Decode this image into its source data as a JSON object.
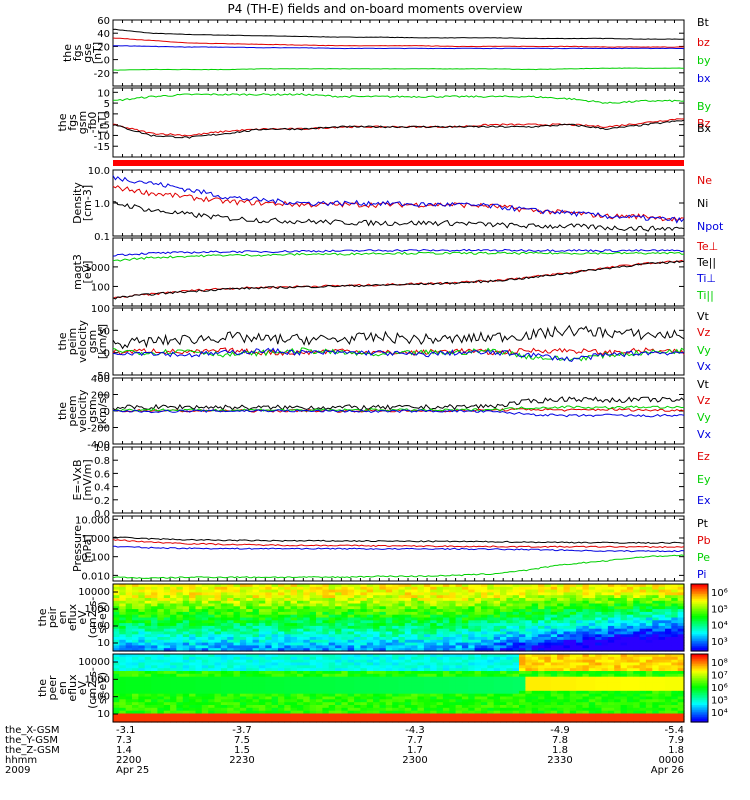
{
  "title": "P4 (TH-E) fields and on-board moments overview",
  "chart_data": [
    {
      "type": "line",
      "panel": "fgs_gse",
      "ylabel": [
        "the",
        "fgs",
        "gse",
        "[nT]"
      ],
      "ylim": [
        -40,
        60
      ],
      "yticks": [
        60,
        40,
        20,
        0,
        -20
      ],
      "series": [
        {
          "name": "Bt",
          "color": "#000000",
          "values": [
            46,
            40,
            38,
            37,
            36,
            35,
            34,
            34,
            33,
            33,
            33,
            32,
            32,
            32,
            31,
            31
          ]
        },
        {
          "name": "bz",
          "color": "#e00000",
          "values": [
            33,
            29,
            25,
            24,
            23,
            22,
            21,
            21,
            21,
            20,
            20,
            20,
            20,
            19,
            19,
            19
          ]
        },
        {
          "name": "by",
          "color": "#00d000",
          "values": [
            -16,
            -15,
            -15,
            -15,
            -14,
            -14,
            -14,
            -14,
            -14,
            -14,
            -14,
            -15,
            -14,
            -13,
            -13,
            -13
          ]
        },
        {
          "name": "bx",
          "color": "#0000e0",
          "values": [
            21,
            20,
            19,
            19,
            18,
            18,
            17,
            17,
            17,
            17,
            17,
            17,
            17,
            17,
            17,
            17
          ]
        }
      ]
    },
    {
      "type": "line",
      "panel": "fgs_gsm_fb0",
      "ylabel": [
        "the",
        "fgs",
        "gsm",
        "-fb0",
        "[nT]"
      ],
      "ylim": [
        -20,
        12
      ],
      "yticks": [
        10,
        5,
        0,
        -5,
        -10,
        -15
      ],
      "series": [
        {
          "name": "By",
          "color": "#00d000",
          "values": [
            6,
            8,
            9,
            9,
            9,
            9,
            8,
            8,
            8,
            8,
            8,
            8,
            7,
            5,
            6,
            6
          ]
        },
        {
          "name": "Bz",
          "color": "#e00000",
          "values": [
            -5,
            -9,
            -10,
            -8,
            -7,
            -7,
            -6,
            -6,
            -6,
            -6,
            -5,
            -5,
            -5,
            -6,
            -4,
            -2
          ]
        },
        {
          "name": "Bx",
          "color": "#000000",
          "values": [
            -5,
            -10,
            -11,
            -9,
            -7,
            -7,
            -6,
            -6,
            -6,
            -6,
            -6,
            -6,
            -5,
            -7,
            -5,
            -3
          ]
        }
      ]
    },
    {
      "type": "line",
      "panel": "density",
      "scale": "log",
      "ylabel": [
        "Density",
        "[cm-3]"
      ],
      "ylim": [
        0.1,
        10
      ],
      "yticks": [
        "10.0",
        "1.0",
        "0.1"
      ],
      "series": [
        {
          "name": "Ne",
          "color": "#e00000",
          "values": [
            3,
            2,
            1.5,
            1.1,
            1.0,
            0.9,
            0.9,
            0.9,
            0.9,
            0.9,
            0.8,
            0.6,
            0.5,
            0.4,
            0.4,
            0.3
          ]
        },
        {
          "name": "Ni",
          "color": "#000000",
          "values": [
            1,
            0.6,
            0.45,
            0.35,
            0.3,
            0.28,
            0.26,
            0.25,
            0.25,
            0.25,
            0.22,
            0.2,
            0.2,
            0.18,
            0.17,
            0.17
          ]
        },
        {
          "name": "Npot",
          "color": "#0000e0",
          "values": [
            6,
            4,
            2.5,
            1.5,
            1.2,
            1.0,
            1.0,
            1.0,
            0.9,
            0.9,
            0.8,
            0.6,
            0.5,
            0.4,
            0.35,
            0.3
          ]
        }
      ]
    },
    {
      "type": "line",
      "panel": "magt3",
      "scale": "log",
      "ylabel": [
        "magt3",
        "[eV]"
      ],
      "ylim": [
        10,
        30000
      ],
      "yticks": [
        "1000",
        "100"
      ],
      "series": [
        {
          "name": "Te⊥",
          "color": "#e00000",
          "values": [
            25,
            40,
            60,
            80,
            90,
            100,
            110,
            120,
            140,
            160,
            200,
            300,
            500,
            900,
            1500,
            2000
          ]
        },
        {
          "name": "Te||",
          "color": "#000000",
          "values": [
            25,
            40,
            55,
            75,
            85,
            95,
            105,
            115,
            130,
            150,
            190,
            280,
            480,
            850,
            1400,
            1900
          ]
        },
        {
          "name": "Ti⊥",
          "color": "#0000e0",
          "values": [
            4000,
            5000,
            5500,
            6000,
            6000,
            6500,
            6500,
            7000,
            7000,
            7000,
            7000,
            7000,
            7000,
            6800,
            6800,
            6800
          ]
        },
        {
          "name": "Ti||",
          "color": "#00d000",
          "values": [
            2000,
            3000,
            3500,
            4000,
            4000,
            4500,
            4500,
            5000,
            5000,
            5000,
            5000,
            5000,
            5000,
            5000,
            5000,
            5000
          ]
        }
      ]
    },
    {
      "type": "line",
      "panel": "peim_velocity",
      "ylabel": [
        "the",
        "peim",
        "velocity",
        "gsm",
        "[km/s]"
      ],
      "ylim": [
        -50,
        100
      ],
      "yticks": [
        100,
        50,
        0,
        -50
      ],
      "series": [
        {
          "name": "Vt",
          "color": "#000000",
          "values": [
            20,
            25,
            30,
            35,
            30,
            30,
            30,
            35,
            30,
            30,
            35,
            40,
            50,
            45,
            40,
            40
          ]
        },
        {
          "name": "Vz",
          "color": "#e00000",
          "values": [
            0,
            5,
            0,
            5,
            0,
            0,
            5,
            0,
            0,
            5,
            0,
            5,
            5,
            0,
            5,
            0
          ]
        },
        {
          "name": "Vy",
          "color": "#00d000",
          "values": [
            5,
            0,
            5,
            -5,
            0,
            5,
            0,
            -5,
            0,
            0,
            5,
            -10,
            -15,
            -5,
            0,
            5
          ]
        },
        {
          "name": "Vx",
          "color": "#0000e0",
          "values": [
            0,
            0,
            -5,
            0,
            5,
            0,
            0,
            0,
            -5,
            0,
            0,
            -5,
            -15,
            -5,
            0,
            0
          ]
        }
      ]
    },
    {
      "type": "line",
      "panel": "peem_velocity",
      "ylabel": [
        "the",
        "peem",
        "velocity",
        "gsm",
        "[km/s]"
      ],
      "ylim": [
        -400,
        400
      ],
      "yticks": [
        400,
        200,
        0,
        -200,
        -400
      ],
      "series": [
        {
          "name": "Vt",
          "color": "#000000",
          "values": [
            40,
            45,
            50,
            45,
            40,
            45,
            45,
            40,
            45,
            50,
            60,
            120,
            150,
            130,
            140,
            130
          ]
        },
        {
          "name": "Vz",
          "color": "#e00000",
          "values": [
            0,
            5,
            0,
            5,
            0,
            5,
            0,
            5,
            0,
            5,
            10,
            20,
            10,
            20,
            10,
            10
          ]
        },
        {
          "name": "Vy",
          "color": "#00d000",
          "values": [
            10,
            15,
            10,
            10,
            15,
            10,
            10,
            15,
            10,
            10,
            20,
            40,
            50,
            40,
            50,
            40
          ]
        },
        {
          "name": "Vx",
          "color": "#0000e0",
          "values": [
            0,
            -5,
            0,
            0,
            5,
            0,
            0,
            -5,
            0,
            0,
            -10,
            -40,
            -60,
            -50,
            -60,
            -50
          ]
        }
      ]
    },
    {
      "type": "line",
      "panel": "e_vxb",
      "ylabel": [
        "E=-VxB",
        "[mV/m]"
      ],
      "ylim": [
        0,
        1
      ],
      "yticks": [
        "1.0",
        "0.8",
        "0.6",
        "0.4",
        "0.2",
        "0.0"
      ],
      "series": [
        {
          "name": "Ez",
          "color": "#e00000",
          "values": []
        },
        {
          "name": "Ey",
          "color": "#00d000",
          "values": []
        },
        {
          "name": "Ex",
          "color": "#0000e0",
          "values": []
        }
      ]
    },
    {
      "type": "line",
      "panel": "pressure",
      "scale": "log",
      "ylabel": [
        "Pressure",
        "[nPa]"
      ],
      "ylim": [
        0.005,
        15
      ],
      "yticks": [
        "10.000",
        "1.000",
        "0.100",
        "0.010"
      ],
      "series": [
        {
          "name": "Pt",
          "color": "#000000",
          "values": [
            1.1,
            0.9,
            0.8,
            0.75,
            0.72,
            0.7,
            0.7,
            0.68,
            0.66,
            0.65,
            0.63,
            0.6,
            0.58,
            0.56,
            0.55,
            0.55
          ]
        },
        {
          "name": "Pb",
          "color": "#e00000",
          "values": [
            0.8,
            0.6,
            0.5,
            0.45,
            0.42,
            0.4,
            0.4,
            0.38,
            0.37,
            0.36,
            0.35,
            0.34,
            0.34,
            0.34,
            0.33,
            0.33
          ]
        },
        {
          "name": "Pe",
          "color": "#00d000",
          "values": [
            0.008,
            0.007,
            0.008,
            0.008,
            0.008,
            0.008,
            0.008,
            0.009,
            0.009,
            0.01,
            0.012,
            0.02,
            0.04,
            0.06,
            0.1,
            0.12
          ]
        },
        {
          "name": "Pi",
          "color": "#0000e0",
          "values": [
            0.35,
            0.3,
            0.28,
            0.27,
            0.27,
            0.27,
            0.27,
            0.26,
            0.26,
            0.26,
            0.25,
            0.24,
            0.22,
            0.2,
            0.2,
            0.2
          ]
        }
      ]
    },
    {
      "type": "heatmap",
      "panel": "peir_en_eflux",
      "ylabel": [
        "the",
        "peir",
        "en",
        "eflux",
        "eV",
        "(cm2-s-",
        "sr-eV)"
      ],
      "yticks": [
        "10000",
        "1000",
        "100",
        "10"
      ],
      "colorbar_ticks": [
        "10⁶",
        "10⁵",
        "10⁴",
        "10³"
      ]
    },
    {
      "type": "heatmap",
      "panel": "peer_en_eflux",
      "ylabel": [
        "the",
        "peer",
        "en",
        "eflux",
        "eV",
        "(cm2-s-",
        "sr-eV)"
      ],
      "yticks": [
        "10000",
        "1000",
        "100",
        "10"
      ],
      "colorbar_ticks": [
        "10⁸",
        "10⁷",
        "10⁶",
        "10⁵",
        "10⁴"
      ]
    }
  ],
  "x_axis": {
    "labels": [
      {
        "name": "the_X-GSM",
        "values": [
          "-3.1",
          "-3.7",
          "-4.3",
          "-4.9",
          "-5.4"
        ]
      },
      {
        "name": "the_Y-GSM",
        "values": [
          "7.3",
          "7.5",
          "7.7",
          "7.8",
          "7.9"
        ]
      },
      {
        "name": "the_Z-GSM",
        "values": [
          "1.4",
          "1.5",
          "1.7",
          "1.8",
          "1.8"
        ]
      },
      {
        "name": "hhmm",
        "values": [
          "2200",
          "2230",
          "2300",
          "2330",
          "0000"
        ]
      },
      {
        "name": "2009",
        "values": [
          "Apr 25",
          "",
          "",
          "",
          "Apr 26"
        ]
      }
    ]
  }
}
